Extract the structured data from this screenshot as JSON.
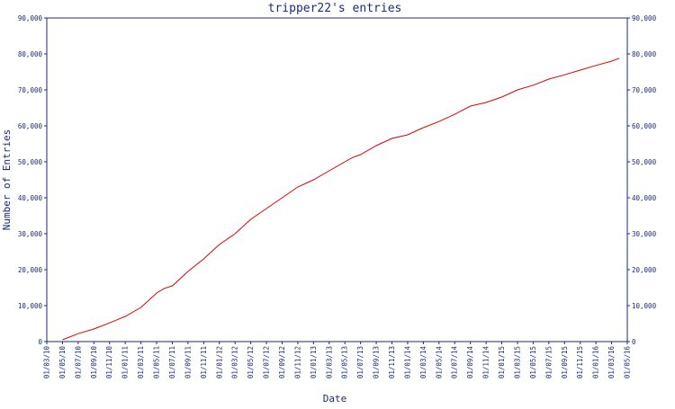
{
  "colors": {
    "axis": "#1a2a80",
    "line": "#e00000",
    "background": "#ffffff"
  },
  "chart_data": {
    "type": "line",
    "title": "tripper22's entries",
    "xlabel": "Date",
    "ylabel": "Number of Entries",
    "ylim": [
      0,
      90000
    ],
    "y_ticks": [
      0,
      10000,
      20000,
      30000,
      40000,
      50000,
      60000,
      70000,
      80000,
      90000
    ],
    "y_tick_labels": [
      "0",
      "10,000",
      "20,000",
      "30,000",
      "40,000",
      "50,000",
      "60,000",
      "70,000",
      "80,000",
      "90,000"
    ],
    "y_axis_both_sides": true,
    "grid": false,
    "x_tick_labels": [
      "01/03/10",
      "01/05/10",
      "01/07/10",
      "01/09/10",
      "01/11/10",
      "01/01/11",
      "01/03/11",
      "01/05/11",
      "01/07/11",
      "01/09/11",
      "01/11/11",
      "01/01/12",
      "01/03/12",
      "01/05/12",
      "01/07/12",
      "01/09/12",
      "01/11/12",
      "01/01/13",
      "01/03/13",
      "01/05/13",
      "01/07/13",
      "01/09/13",
      "01/11/13",
      "01/01/14",
      "01/03/14",
      "01/05/14",
      "01/07/14",
      "01/09/14",
      "01/11/14",
      "01/01/15",
      "01/03/15",
      "01/05/15",
      "01/07/15",
      "01/09/15",
      "01/11/15",
      "01/01/16",
      "01/03/16",
      "01/05/16"
    ],
    "series": [
      {
        "x": [
          "01/05/10",
          "01/07/10",
          "01/09/10",
          "01/11/10",
          "01/01/11",
          "01/03/11",
          "01/05/11",
          "01/06/11",
          "01/07/11",
          "01/09/11",
          "01/11/11",
          "01/01/12",
          "01/03/12",
          "01/05/12",
          "01/07/12",
          "01/09/12",
          "01/11/12",
          "01/01/13",
          "01/03/13",
          "01/05/13",
          "01/06/13",
          "01/07/13",
          "01/09/13",
          "01/11/13",
          "01/01/14",
          "01/03/14",
          "01/05/14",
          "01/07/14",
          "01/09/14",
          "01/11/14",
          "01/01/15",
          "01/03/15",
          "01/05/15",
          "01/07/15",
          "01/09/15",
          "01/11/15",
          "01/01/16",
          "01/03/16",
          "01/04/16"
        ],
        "y": [
          500,
          2200,
          3500,
          5200,
          7000,
          9500,
          13500,
          14800,
          15500,
          19500,
          23000,
          27000,
          30000,
          34000,
          37000,
          40000,
          43000,
          45000,
          47500,
          50000,
          51200,
          52000,
          54500,
          56500,
          57500,
          59500,
          61200,
          63200,
          65500,
          66500,
          68000,
          70000,
          71300,
          73000,
          74200,
          75500,
          76800,
          78000,
          78800
        ]
      }
    ]
  }
}
